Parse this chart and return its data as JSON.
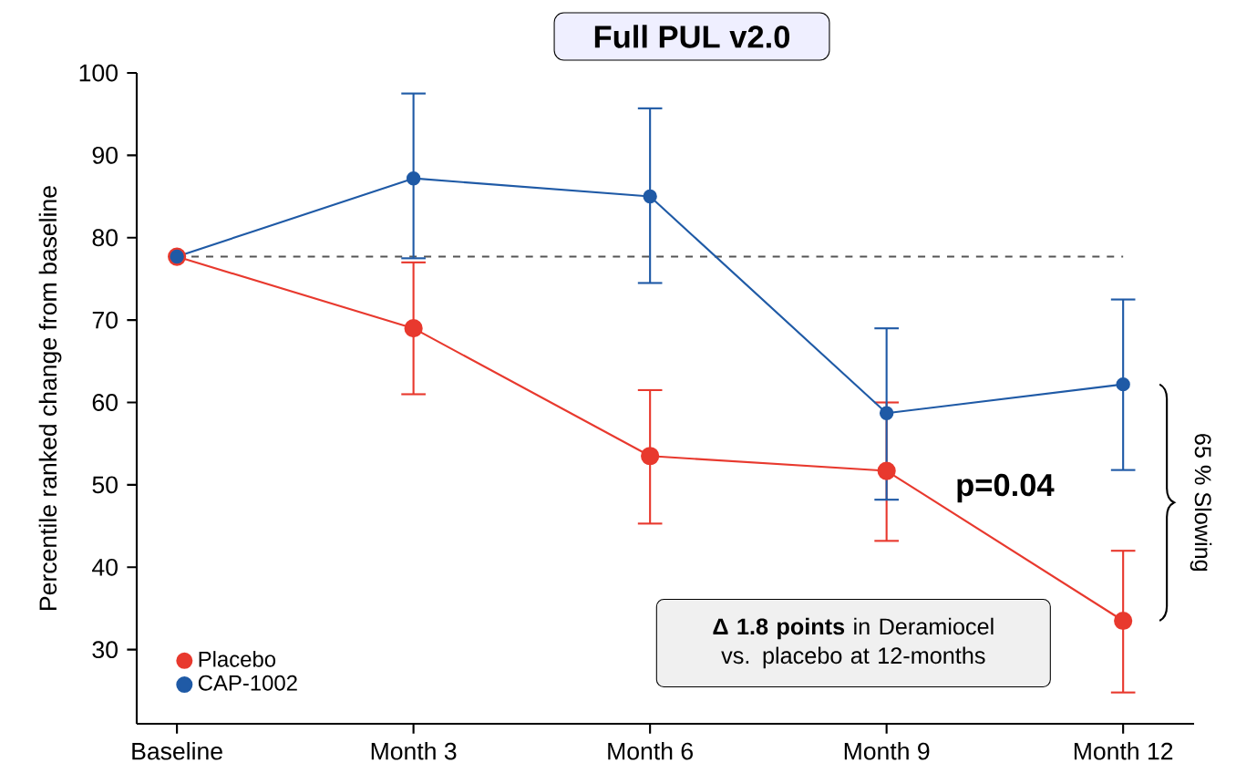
{
  "chart_data": {
    "type": "line",
    "title": "Full PUL v2.0",
    "ylabel": "Percentile ranked change from baseline",
    "categories": [
      "Baseline",
      "Month 3",
      "Month 6",
      "Month 9",
      "Month 12"
    ],
    "series": [
      {
        "name": "Placebo",
        "color": "#e8392e",
        "values": [
          77.7,
          69,
          53.5,
          51.7,
          33.5
        ],
        "errors": [
          null,
          [
            61,
            77
          ],
          [
            45.3,
            61.5
          ],
          [
            43.2,
            60
          ],
          [
            24.8,
            42
          ]
        ]
      },
      {
        "name": "CAP-1002",
        "color": "#1f5aa6",
        "values": [
          77.7,
          87.2,
          85,
          58.7,
          62.2
        ],
        "errors": [
          null,
          [
            77.5,
            97.5
          ],
          [
            74.5,
            95.7
          ],
          [
            48.2,
            69
          ],
          [
            51.8,
            72.5
          ]
        ]
      }
    ],
    "ylim": [
      21,
      100
    ],
    "yticks": [
      30,
      40,
      50,
      60,
      70,
      80,
      90,
      100
    ],
    "ref_lines": [
      {
        "axis": "y",
        "value": 77.7,
        "color": "#555555",
        "line_style": "dashed"
      }
    ],
    "annotations": [
      "p=0.04",
      "**Δ 1.8 points** in Deramiocel vs. placebo at 12-months",
      "65 % Slowing"
    ],
    "marker": "circle",
    "line_style": "solid",
    "legend": "bottom left",
    "grid": false
  }
}
